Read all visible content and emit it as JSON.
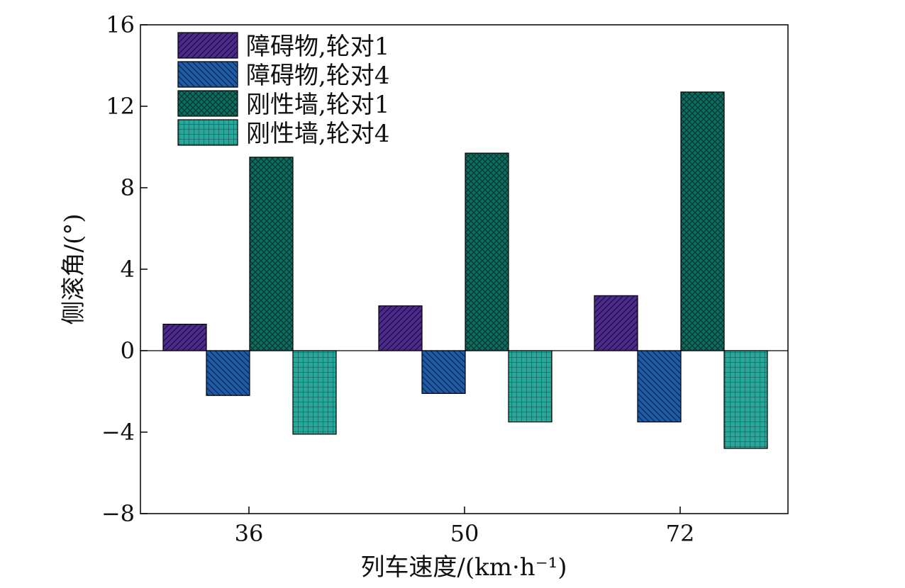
{
  "chart_data": {
    "type": "bar",
    "xlabel": "列车速度/(km·h⁻¹)",
    "ylabel": "侧滚角/(°)",
    "categories": [
      "36",
      "50",
      "72"
    ],
    "ylim": [
      -8,
      16
    ],
    "yticks": [
      16,
      12,
      8,
      4,
      0,
      -4,
      -8
    ],
    "ytick_labels": [
      "16",
      "12",
      "8",
      "4",
      "0",
      "−4",
      "−8"
    ],
    "grid": false,
    "legend_position": "top-left",
    "series": [
      {
        "name": "障碍物,轮对1",
        "values": [
          1.3,
          2.2,
          2.7
        ],
        "color": "#4b2a8c",
        "pattern": "diag-right"
      },
      {
        "name": "障碍物,轮对4",
        "values": [
          -2.2,
          -2.1,
          -3.5
        ],
        "color": "#1f5aa6",
        "pattern": "diag-left"
      },
      {
        "name": "刚性墙,轮对1",
        "values": [
          9.5,
          9.7,
          12.7
        ],
        "color": "#0e6b5f",
        "pattern": "crosshatch"
      },
      {
        "name": "刚性墙,轮对4",
        "values": [
          -4.1,
          -3.5,
          -4.8
        ],
        "color": "#2aa79b",
        "pattern": "grid"
      }
    ]
  }
}
